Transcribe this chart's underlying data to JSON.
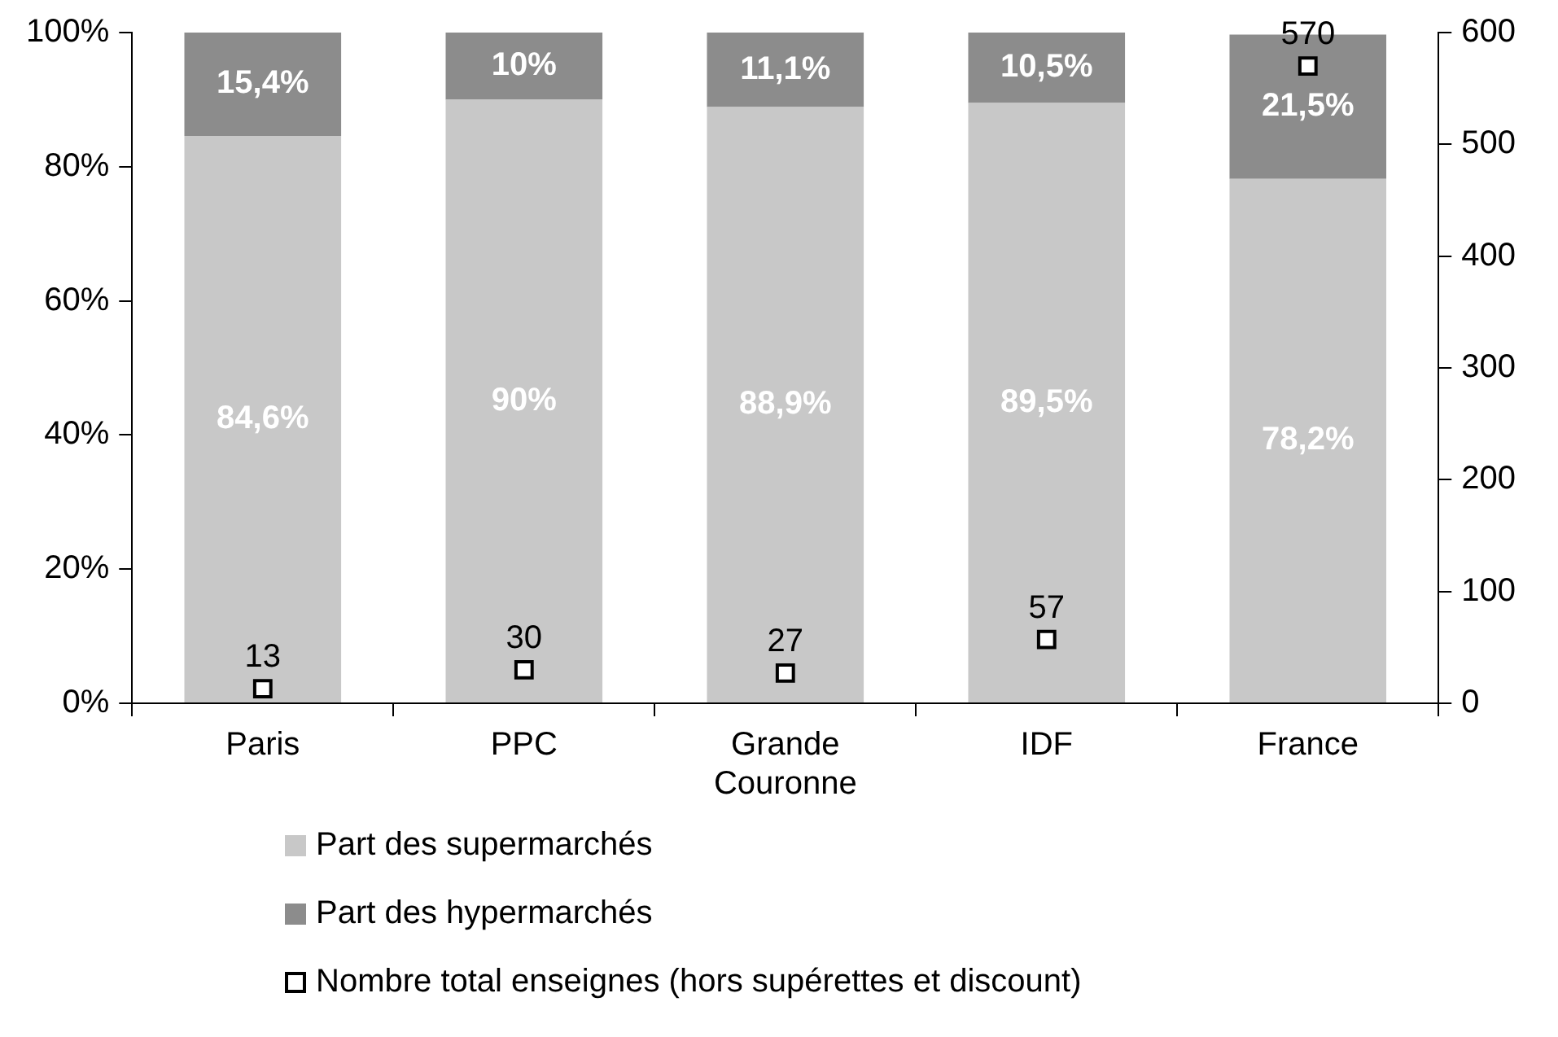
{
  "chart_data": {
    "type": "bar",
    "stacked": true,
    "categories": [
      "Paris",
      "PPC",
      "Grande Couronne",
      "IDF",
      "France"
    ],
    "series": [
      {
        "name": "Part des supermarchés",
        "color": "#c8c8c8",
        "values": [
          84.6,
          90,
          88.9,
          89.5,
          78.2
        ],
        "value_labels": [
          "84,6%",
          "90%",
          "88,9%",
          "89,5%",
          "78,2%"
        ]
      },
      {
        "name": "Part des hypermarchés",
        "color": "#8c8c8c",
        "values": [
          15.4,
          10,
          11.1,
          10.5,
          21.5
        ],
        "value_labels": [
          "15,4%",
          "10%",
          "11,1%",
          "10,5%",
          "21,5%"
        ]
      },
      {
        "name": "Nombre total enseignes (hors supérettes et discount)",
        "type": "scatter",
        "axis": "y2",
        "color": "#000000",
        "x": [
          "Paris",
          "PPC",
          "Grande Couronne",
          "IDF",
          "France"
        ],
        "values": [
          13,
          30,
          27,
          57,
          570
        ],
        "value_labels": [
          "13",
          "30",
          "27",
          "57",
          "570"
        ]
      }
    ],
    "ylim": [
      0,
      100
    ],
    "yticks": [
      {
        "value": 0,
        "label": "0%"
      },
      {
        "value": 20,
        "label": "20%"
      },
      {
        "value": 40,
        "label": "40%"
      },
      {
        "value": 60,
        "label": "60%"
      },
      {
        "value": 80,
        "label": "80%"
      },
      {
        "value": 100,
        "label": "100%"
      }
    ],
    "y2lim": [
      0,
      600
    ],
    "y2ticks": [
      0,
      100,
      200,
      300,
      400,
      500,
      600
    ],
    "marker": "square",
    "legend": "bottom",
    "grid": false
  }
}
